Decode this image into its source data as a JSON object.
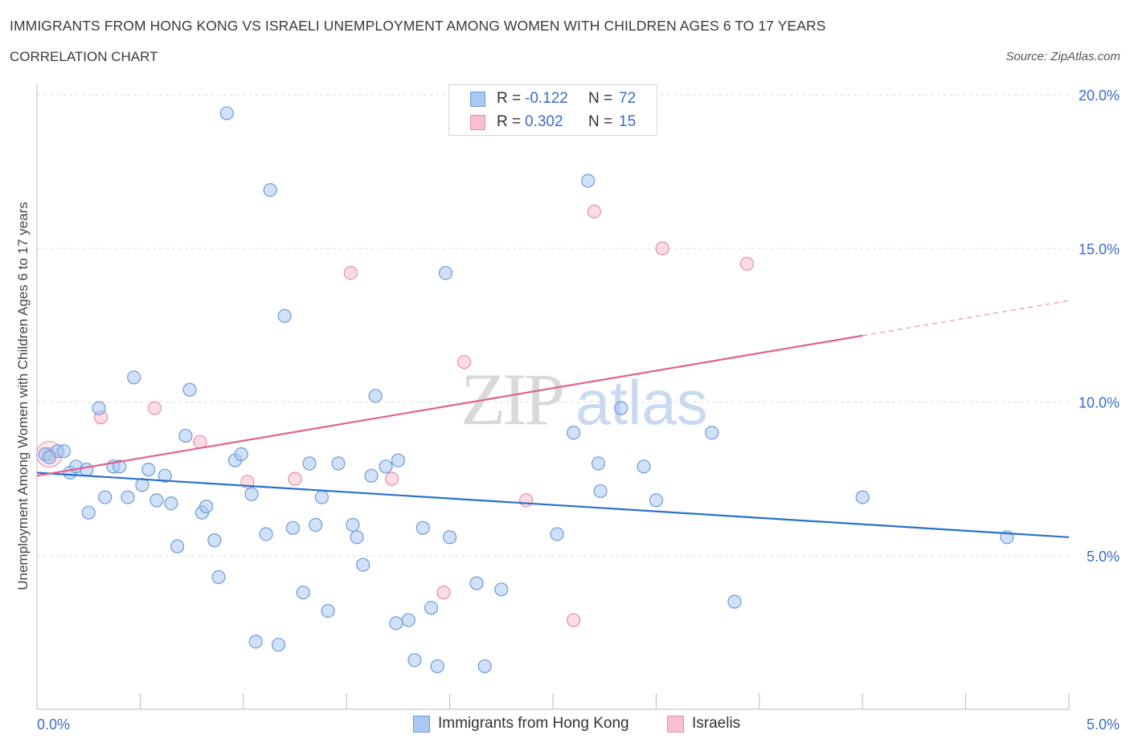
{
  "header": {
    "title": "IMMIGRANTS FROM HONG KONG VS ISRAELI UNEMPLOYMENT AMONG WOMEN WITH CHILDREN AGES 6 TO 17 YEARS",
    "subtitle": "CORRELATION CHART",
    "source": "Source: ZipAtlas.com"
  },
  "legend": {
    "series": [
      {
        "r_label": "R =",
        "r_value": "-0.122",
        "n_label": "N =",
        "n_value": "72",
        "color": "#a9c8f2",
        "stroke": "#6f9ad8"
      },
      {
        "r_label": "R =",
        "r_value": "0.302",
        "n_label": "N =",
        "n_value": "15",
        "color": "#f7bfd0",
        "stroke": "#e58fab"
      }
    ]
  },
  "watermark": {
    "zip": "ZIP",
    "atlas": "atlas"
  },
  "colors": {
    "blue_fill": "#a9c8f2",
    "blue_stroke": "#6f9ad8",
    "blue_line": "#2a6fcc",
    "pink_fill": "#f7bfd0",
    "pink_stroke": "#e58fab",
    "pink_line": "#e0628b",
    "tick_text": "#3a6cc7",
    "grid": "#dddddd"
  },
  "chart_data": {
    "type": "scatter",
    "title": "IMMIGRANTS FROM HONG KONG VS ISRAELI UNEMPLOYMENT AMONG WOMEN WITH CHILDREN AGES 6 TO 17 YEARS",
    "xlabel": "",
    "ylabel": "Unemployment Among Women with Children Ages 6 to 17 years",
    "xlim": [
      0,
      5
    ],
    "ylim": [
      0,
      20
    ],
    "x_tick_labels": [
      "0.0%",
      "5.0%"
    ],
    "y_ticks": [
      5,
      10,
      15,
      20
    ],
    "y_tick_labels": [
      "5.0%",
      "10.0%",
      "15.0%",
      "20.0%"
    ],
    "grid": true,
    "legend_position": "top-center",
    "series": [
      {
        "name": "Immigrants from Hong Kong",
        "color": "#a9c8f2",
        "trend": {
          "x": [
            0,
            5
          ],
          "y": [
            7.7,
            5.6
          ]
        },
        "points": [
          [
            0.04,
            8.3
          ],
          [
            0.1,
            8.4
          ],
          [
            0.13,
            8.4
          ],
          [
            0.16,
            7.7
          ],
          [
            0.19,
            7.9
          ],
          [
            0.24,
            7.8
          ],
          [
            0.25,
            6.4
          ],
          [
            0.3,
            9.8
          ],
          [
            0.33,
            6.9
          ],
          [
            0.37,
            7.9
          ],
          [
            0.4,
            7.9
          ],
          [
            0.44,
            6.9
          ],
          [
            0.47,
            10.8
          ],
          [
            0.51,
            7.3
          ],
          [
            0.54,
            7.8
          ],
          [
            0.58,
            6.8
          ],
          [
            0.62,
            7.6
          ],
          [
            0.65,
            6.7
          ],
          [
            0.68,
            5.3
          ],
          [
            0.72,
            8.9
          ],
          [
            0.74,
            10.4
          ],
          [
            0.8,
            6.4
          ],
          [
            0.82,
            6.6
          ],
          [
            0.86,
            5.5
          ],
          [
            0.88,
            4.3
          ],
          [
            0.92,
            19.4
          ],
          [
            0.96,
            8.1
          ],
          [
            0.99,
            8.3
          ],
          [
            1.04,
            7.0
          ],
          [
            1.06,
            2.2
          ],
          [
            1.11,
            5.7
          ],
          [
            1.13,
            16.9
          ],
          [
            1.17,
            2.1
          ],
          [
            1.2,
            12.8
          ],
          [
            1.24,
            5.9
          ],
          [
            1.29,
            3.8
          ],
          [
            1.32,
            8.0
          ],
          [
            1.35,
            6.0
          ],
          [
            1.38,
            6.9
          ],
          [
            1.41,
            3.2
          ],
          [
            1.46,
            8.0
          ],
          [
            1.53,
            6.0
          ],
          [
            1.55,
            5.6
          ],
          [
            1.58,
            4.7
          ],
          [
            1.62,
            7.6
          ],
          [
            1.64,
            10.2
          ],
          [
            1.69,
            7.9
          ],
          [
            1.74,
            2.8
          ],
          [
            1.75,
            8.1
          ],
          [
            1.8,
            2.9
          ],
          [
            1.83,
            1.6
          ],
          [
            1.87,
            5.9
          ],
          [
            1.91,
            3.3
          ],
          [
            1.94,
            1.4
          ],
          [
            1.98,
            14.2
          ],
          [
            2.0,
            5.6
          ],
          [
            2.13,
            4.1
          ],
          [
            2.17,
            1.4
          ],
          [
            2.25,
            3.9
          ],
          [
            2.52,
            5.7
          ],
          [
            2.6,
            9.0
          ],
          [
            2.67,
            17.2
          ],
          [
            2.72,
            8.0
          ],
          [
            2.73,
            7.1
          ],
          [
            2.83,
            9.8
          ],
          [
            2.94,
            7.9
          ],
          [
            3.0,
            6.8
          ],
          [
            3.27,
            9.0
          ],
          [
            3.38,
            3.5
          ],
          [
            4.0,
            6.9
          ],
          [
            4.7,
            5.6
          ],
          [
            0.06,
            8.2
          ]
        ]
      },
      {
        "name": "Israelis",
        "color": "#f7bfd0",
        "trend": {
          "x": [
            0,
            5
          ],
          "y": [
            7.6,
            13.3
          ]
        },
        "points": [
          [
            0.06,
            8.3
          ],
          [
            0.31,
            9.5
          ],
          [
            0.57,
            9.8
          ],
          [
            0.79,
            8.7
          ],
          [
            1.02,
            7.4
          ],
          [
            1.25,
            7.5
          ],
          [
            1.52,
            14.2
          ],
          [
            1.72,
            7.5
          ],
          [
            1.97,
            3.8
          ],
          [
            2.07,
            11.3
          ],
          [
            2.37,
            6.8
          ],
          [
            2.6,
            2.9
          ],
          [
            2.7,
            16.2
          ],
          [
            3.03,
            15.0
          ],
          [
            3.44,
            14.5
          ]
        ]
      }
    ]
  },
  "bottom_legend": {
    "items": [
      {
        "label": "Immigrants from Hong Kong"
      },
      {
        "label": "Israelis"
      }
    ]
  }
}
